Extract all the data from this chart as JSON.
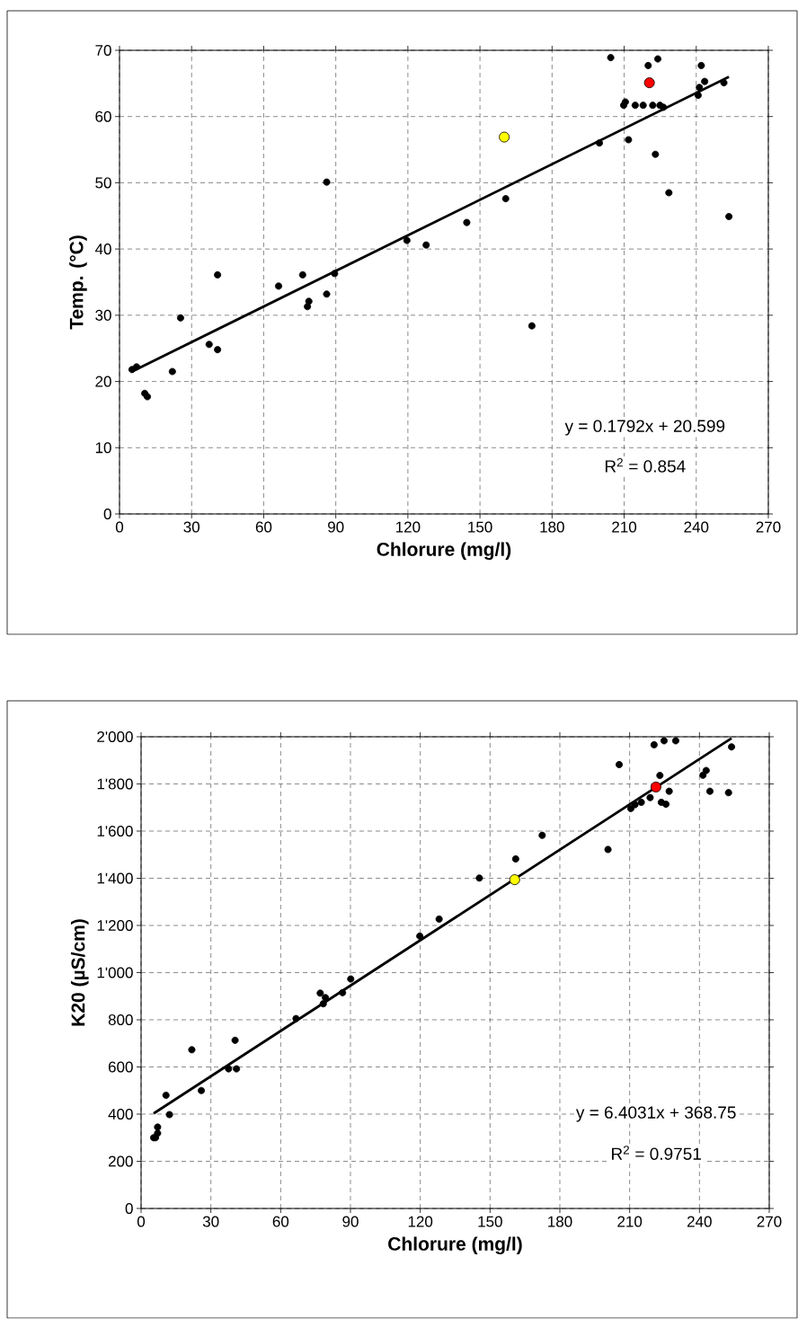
{
  "chart_data": [
    {
      "type": "scatter",
      "xlabel": "Chlorure (mg/l)",
      "ylabel": "Temp. (°C)",
      "xlim": [
        0,
        270
      ],
      "ylim": [
        0,
        70
      ],
      "xticks": [
        0,
        30,
        60,
        90,
        120,
        150,
        180,
        210,
        240,
        270
      ],
      "yticks": [
        0,
        10,
        20,
        30,
        40,
        50,
        60,
        70
      ],
      "grid": true,
      "annotations": [
        "y = 0.1792x + 20.599",
        "R$^{2}$ = 0.854"
      ],
      "series": [
        {
          "marker": "circle",
          "color": "#000000",
          "x": [
            5.2,
            7.1,
            10.5,
            11.6,
            22,
            25.4,
            37.3,
            40.8,
            40.8,
            66.2,
            76.2,
            78.2,
            78.8,
            86.2,
            86.2,
            89.5,
            119.6,
            127.6,
            144.5,
            160.7,
            171.6,
            199.7,
            204.4,
            209.8,
            210.5,
            211.8,
            214.6,
            217.9,
            220,
            221.9,
            223,
            224,
            224.9,
            226.3,
            228.6,
            240.8,
            241.3,
            242.1,
            243.5,
            251.5,
            253.6
          ],
          "values": [
            21.8,
            22.2,
            18.2,
            17.7,
            21.5,
            29.6,
            25.6,
            24.8,
            36.1,
            34.4,
            36.1,
            31.3,
            32.1,
            33.2,
            50.1,
            36.3,
            41.3,
            40.6,
            44.0,
            47.6,
            28.4,
            56.0,
            68.9,
            61.7,
            62.2,
            56.5,
            61.7,
            61.7,
            67.7,
            61.7,
            54.3,
            68.7,
            61.7,
            61.4,
            48.5,
            63.2,
            64.4,
            67.7,
            65.3,
            65.1,
            44.9
          ]
        },
        {
          "marker": "circle",
          "color": "#ff0000",
          "x": [
            220.5
          ],
          "values": [
            65.1
          ]
        },
        {
          "marker": "circle",
          "color": "#ffff00",
          "x": [
            160.1
          ],
          "values": [
            56.9
          ]
        },
        {
          "type": "line",
          "marker": "none",
          "color": "#000000",
          "x": [
            5.2,
            253.6
          ],
          "values": [
            21.5,
            66.0
          ]
        }
      ]
    },
    {
      "type": "scatter",
      "xlabel": "Chlorure (mg/l)",
      "ylabel": "K20 (µS/cm)",
      "xlim": [
        0,
        270
      ],
      "ylim": [
        0,
        2000
      ],
      "xticks": [
        0,
        30,
        60,
        90,
        120,
        150,
        180,
        210,
        240,
        270
      ],
      "yticks": [
        0,
        200,
        400,
        600,
        800,
        {
          "value": 1000,
          "label": "1'000"
        },
        {
          "value": 1200,
          "label": "1'200"
        },
        {
          "value": 1400,
          "label": "1'400"
        },
        {
          "value": 1600,
          "label": "1'600"
        },
        {
          "value": 1800,
          "label": "1'800"
        },
        {
          "value": 2000,
          "label": "2'000"
        }
      ],
      "grid": true,
      "annotations": [
        "y = 6.4031x + 368.75",
        "R$^{2}$ = 0.9751"
      ],
      "series": [
        {
          "marker": "circle",
          "color": "#000000",
          "x": [
            5.4,
            6.2,
            7.1,
            7.1,
            10.7,
            12.2,
            21.8,
            25.9,
            37.6,
            40.4,
            41,
            66.6,
            77,
            78.3,
            79.2,
            86.6,
            90.1,
            119.8,
            128.1,
            145.4,
            161,
            172.4,
            200.7,
            205.5,
            210.5,
            212.3,
            215,
            218.8,
            220.5,
            223,
            223.6,
            224.8,
            225.6,
            227,
            229.8,
            241.5,
            242.9,
            244.5,
            252.5,
            253.8
          ],
          "values": [
            300,
            300,
            319,
            345,
            480,
            398,
            673,
            500,
            592,
            713,
            592,
            805,
            913,
            868,
            894,
            915,
            973,
            1155,
            1227,
            1401,
            1482,
            1582,
            1522,
            1882,
            1696,
            1712,
            1722,
            1742,
            1966,
            1836,
            1722,
            1983,
            1714,
            1769,
            1983,
            1837,
            1857,
            1769,
            1763,
            1957
          ]
        },
        {
          "marker": "circle",
          "color": "#ff0000",
          "x": [
            221.3
          ],
          "values": [
            1787
          ]
        },
        {
          "marker": "circle",
          "color": "#ffff00",
          "x": [
            160.6
          ],
          "values": [
            1394
          ]
        },
        {
          "type": "line",
          "marker": "none",
          "color": "#000000",
          "x": [
            5.4,
            253.8
          ],
          "values": [
            403,
            1994
          ]
        }
      ]
    }
  ]
}
